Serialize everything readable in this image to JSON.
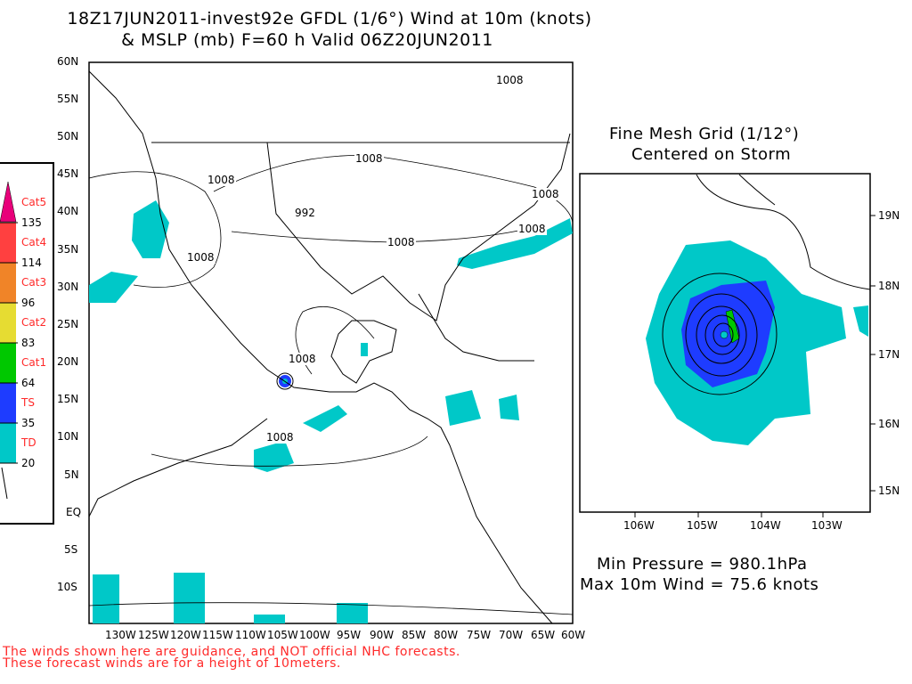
{
  "title": {
    "line1": "18Z17JUN2011-invest92e GFDL (1/6°) Wind at 10m (knots)",
    "line2": "& MSLP (mb) F=60 h Valid 06Z20JUN2011"
  },
  "main_map": {
    "lat_ticks": [
      "60N",
      "55N",
      "50N",
      "45N",
      "40N",
      "35N",
      "30N",
      "25N",
      "20N",
      "15N",
      "10N",
      "5N",
      "EQ",
      "5S",
      "10S"
    ],
    "lon_ticks": [
      "130W",
      "125W",
      "120W",
      "115W",
      "110W",
      "105W",
      "100W",
      "95W",
      "90W",
      "85W",
      "80W",
      "75W",
      "70W",
      "65W",
      "60W"
    ],
    "contour_labels": [
      "1008",
      "1008",
      "1008",
      "992",
      "1008",
      "1008",
      "1008",
      "1008",
      "1008",
      "1008"
    ]
  },
  "legend": {
    "categories": [
      {
        "label": "Cat5",
        "threshold": "135",
        "color": "#e8007a"
      },
      {
        "label": "Cat4",
        "threshold": "114",
        "color": "#ff4040"
      },
      {
        "label": "Cat3",
        "threshold": "96",
        "color": "#f08428"
      },
      {
        "label": "Cat2",
        "threshold": "83",
        "color": "#e6dc32"
      },
      {
        "label": "Cat1",
        "threshold": "64",
        "color": "#00c800"
      },
      {
        "label": "TS",
        "threshold": "35",
        "color": "#1e3cff"
      },
      {
        "label": "TD",
        "threshold": "20",
        "color": "#00c8c8"
      }
    ]
  },
  "fine_mesh": {
    "title_line1": "Fine Mesh Grid (1/12°)",
    "title_line2": "Centered on Storm",
    "lat_ticks": [
      "19N",
      "18N",
      "17N",
      "16N",
      "15N"
    ],
    "lon_ticks": [
      "106W",
      "105W",
      "104W",
      "103W"
    ],
    "min_pressure": "Min Pressure = 980.1hPa",
    "max_wind": "Max 10m Wind = 75.6 knots"
  },
  "footer": {
    "line1": "The winds shown here are guidance, and NOT official NHC forecasts.",
    "line2": "These forecast winds are for a height of 10meters."
  }
}
